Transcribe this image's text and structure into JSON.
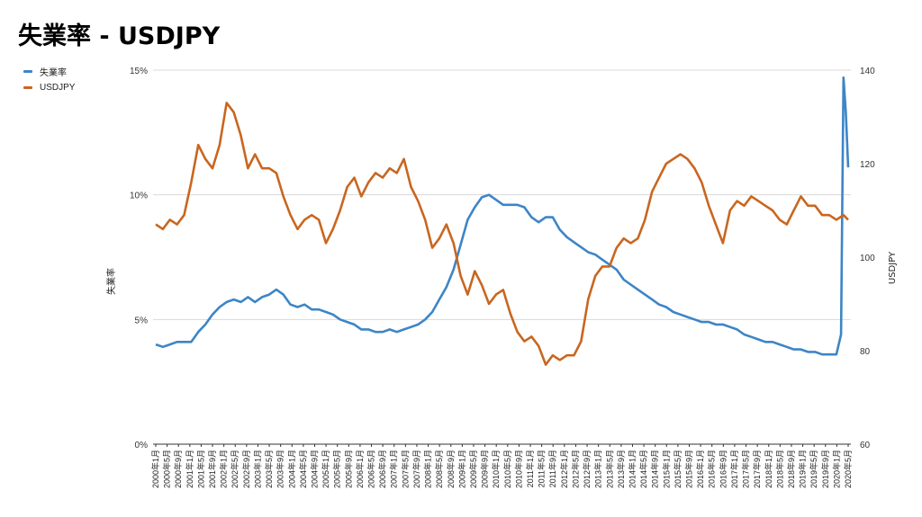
{
  "title": "失業率 - USDJPY",
  "legend": [
    {
      "name": "失業率",
      "color": "#3d85c6"
    },
    {
      "name": "USDJPY",
      "color": "#c9661f"
    }
  ],
  "chart_data": {
    "type": "line",
    "title": "失業率 - USDJPY",
    "y_left": {
      "label": "失業率",
      "ticks": [
        "0%",
        "5%",
        "10%",
        "15%"
      ],
      "range": [
        0,
        15
      ]
    },
    "y_right": {
      "label": "USDJPY",
      "ticks": [
        "60",
        "80",
        "100",
        "120",
        "140"
      ],
      "range": [
        60,
        140
      ]
    },
    "x_tick_labels": [
      "2000年1月",
      "2000年5月",
      "2000年9月",
      "2001年1月",
      "2001年5月",
      "2001年9月",
      "2002年1月",
      "2002年5月",
      "2002年9月",
      "2003年1月",
      "2003年5月",
      "2003年9月",
      "2004年1月",
      "2004年5月",
      "2004年9月",
      "2005年1月",
      "2005年5月",
      "2005年9月",
      "2006年1月",
      "2006年5月",
      "2006年9月",
      "2007年1月",
      "2007年5月",
      "2007年9月",
      "2008年1月",
      "2008年5月",
      "2008年9月",
      "2009年1月",
      "2009年5月",
      "2009年9月",
      "2010年1月",
      "2010年5月",
      "2010年9月",
      "2011年1月",
      "2011年5月",
      "2011年9月",
      "2012年1月",
      "2012年5月",
      "2012年9月",
      "2013年1月",
      "2013年5月",
      "2013年9月",
      "2014年1月",
      "2014年5月",
      "2014年9月",
      "2015年1月",
      "2015年5月",
      "2015年9月",
      "2016年1月",
      "2016年5月",
      "2016年9月",
      "2017年1月",
      "2017年5月",
      "2017年9月",
      "2018年1月",
      "2018年5月",
      "2018年9月",
      "2019年1月",
      "2019年5月",
      "2019年9月",
      "2020年1月",
      "2020年5月"
    ],
    "series": [
      {
        "name": "失業率",
        "axis": "left",
        "color": "#3d85c6",
        "points": [
          [
            0,
            4.0
          ],
          [
            3,
            3.9
          ],
          [
            6,
            4.0
          ],
          [
            9,
            4.1
          ],
          [
            12,
            4.1
          ],
          [
            15,
            4.1
          ],
          [
            18,
            4.5
          ],
          [
            21,
            4.8
          ],
          [
            24,
            5.2
          ],
          [
            27,
            5.5
          ],
          [
            30,
            5.7
          ],
          [
            33,
            5.8
          ],
          [
            36,
            5.7
          ],
          [
            39,
            5.9
          ],
          [
            42,
            5.7
          ],
          [
            45,
            5.9
          ],
          [
            48,
            6.0
          ],
          [
            51,
            6.2
          ],
          [
            54,
            6.0
          ],
          [
            57,
            5.6
          ],
          [
            60,
            5.5
          ],
          [
            63,
            5.6
          ],
          [
            66,
            5.4
          ],
          [
            69,
            5.4
          ],
          [
            72,
            5.3
          ],
          [
            75,
            5.2
          ],
          [
            78,
            5.0
          ],
          [
            81,
            4.9
          ],
          [
            84,
            4.8
          ],
          [
            87,
            4.6
          ],
          [
            90,
            4.6
          ],
          [
            93,
            4.5
          ],
          [
            96,
            4.5
          ],
          [
            99,
            4.6
          ],
          [
            102,
            4.5
          ],
          [
            105,
            4.6
          ],
          [
            108,
            4.7
          ],
          [
            111,
            4.8
          ],
          [
            114,
            5.0
          ],
          [
            117,
            5.3
          ],
          [
            120,
            5.8
          ],
          [
            123,
            6.3
          ],
          [
            126,
            7.0
          ],
          [
            129,
            8.0
          ],
          [
            132,
            9.0
          ],
          [
            135,
            9.5
          ],
          [
            138,
            9.9
          ],
          [
            141,
            10.0
          ],
          [
            144,
            9.8
          ],
          [
            147,
            9.6
          ],
          [
            150,
            9.6
          ],
          [
            153,
            9.6
          ],
          [
            156,
            9.5
          ],
          [
            159,
            9.1
          ],
          [
            162,
            8.9
          ],
          [
            165,
            9.1
          ],
          [
            168,
            9.1
          ],
          [
            171,
            8.6
          ],
          [
            174,
            8.3
          ],
          [
            177,
            8.1
          ],
          [
            180,
            7.9
          ],
          [
            183,
            7.7
          ],
          [
            186,
            7.6
          ],
          [
            189,
            7.4
          ],
          [
            192,
            7.2
          ],
          [
            195,
            7.0
          ],
          [
            198,
            6.6
          ],
          [
            201,
            6.4
          ],
          [
            204,
            6.2
          ],
          [
            207,
            6.0
          ],
          [
            210,
            5.8
          ],
          [
            213,
            5.6
          ],
          [
            216,
            5.5
          ],
          [
            219,
            5.3
          ],
          [
            222,
            5.2
          ],
          [
            225,
            5.1
          ],
          [
            228,
            5.0
          ],
          [
            231,
            4.9
          ],
          [
            234,
            4.9
          ],
          [
            237,
            4.8
          ],
          [
            240,
            4.8
          ],
          [
            243,
            4.7
          ],
          [
            246,
            4.6
          ],
          [
            249,
            4.4
          ],
          [
            252,
            4.3
          ],
          [
            255,
            4.2
          ],
          [
            258,
            4.1
          ],
          [
            261,
            4.1
          ],
          [
            264,
            4.0
          ],
          [
            267,
            3.9
          ],
          [
            270,
            3.8
          ],
          [
            273,
            3.8
          ],
          [
            276,
            3.7
          ],
          [
            279,
            3.7
          ],
          [
            282,
            3.6
          ],
          [
            285,
            3.6
          ],
          [
            288,
            3.6
          ],
          [
            290,
            4.4
          ],
          [
            291,
            14.7
          ],
          [
            292,
            13.3
          ],
          [
            293,
            11.1
          ]
        ]
      },
      {
        "name": "USDJPY",
        "axis": "right",
        "color": "#c9661f",
        "points": [
          [
            0,
            107
          ],
          [
            3,
            106
          ],
          [
            6,
            108
          ],
          [
            9,
            107
          ],
          [
            12,
            109
          ],
          [
            15,
            116
          ],
          [
            18,
            124
          ],
          [
            21,
            121
          ],
          [
            24,
            119
          ],
          [
            27,
            124
          ],
          [
            30,
            133
          ],
          [
            33,
            131
          ],
          [
            36,
            126
          ],
          [
            39,
            119
          ],
          [
            42,
            122
          ],
          [
            45,
            119
          ],
          [
            48,
            119
          ],
          [
            51,
            118
          ],
          [
            54,
            113
          ],
          [
            57,
            109
          ],
          [
            60,
            106
          ],
          [
            63,
            108
          ],
          [
            66,
            109
          ],
          [
            69,
            108
          ],
          [
            72,
            103
          ],
          [
            75,
            106
          ],
          [
            78,
            110
          ],
          [
            81,
            115
          ],
          [
            84,
            117
          ],
          [
            87,
            113
          ],
          [
            90,
            116
          ],
          [
            93,
            118
          ],
          [
            96,
            117
          ],
          [
            99,
            119
          ],
          [
            102,
            118
          ],
          [
            105,
            121
          ],
          [
            108,
            115
          ],
          [
            111,
            112
          ],
          [
            114,
            108
          ],
          [
            117,
            102
          ],
          [
            120,
            104
          ],
          [
            123,
            107
          ],
          [
            126,
            103
          ],
          [
            129,
            96
          ],
          [
            132,
            92
          ],
          [
            135,
            97
          ],
          [
            138,
            94
          ],
          [
            141,
            90
          ],
          [
            144,
            92
          ],
          [
            147,
            93
          ],
          [
            150,
            88
          ],
          [
            153,
            84
          ],
          [
            156,
            82
          ],
          [
            159,
            83
          ],
          [
            162,
            81
          ],
          [
            165,
            77
          ],
          [
            168,
            79
          ],
          [
            171,
            78
          ],
          [
            174,
            79
          ],
          [
            177,
            79
          ],
          [
            180,
            82
          ],
          [
            183,
            91
          ],
          [
            186,
            96
          ],
          [
            189,
            98
          ],
          [
            192,
            98
          ],
          [
            195,
            102
          ],
          [
            198,
            104
          ],
          [
            201,
            103
          ],
          [
            204,
            104
          ],
          [
            207,
            108
          ],
          [
            210,
            114
          ],
          [
            213,
            117
          ],
          [
            216,
            120
          ],
          [
            219,
            121
          ],
          [
            222,
            122
          ],
          [
            225,
            121
          ],
          [
            228,
            119
          ],
          [
            231,
            116
          ],
          [
            234,
            111
          ],
          [
            237,
            107
          ],
          [
            240,
            103
          ],
          [
            243,
            110
          ],
          [
            246,
            112
          ],
          [
            249,
            111
          ],
          [
            252,
            113
          ],
          [
            255,
            112
          ],
          [
            258,
            111
          ],
          [
            261,
            110
          ],
          [
            264,
            108
          ],
          [
            267,
            107
          ],
          [
            270,
            110
          ],
          [
            273,
            113
          ],
          [
            276,
            111
          ],
          [
            279,
            111
          ],
          [
            282,
            109
          ],
          [
            285,
            109
          ],
          [
            288,
            108
          ],
          [
            291,
            109
          ],
          [
            293,
            108
          ]
        ]
      }
    ],
    "grid": true,
    "legend_position": "top-left"
  }
}
